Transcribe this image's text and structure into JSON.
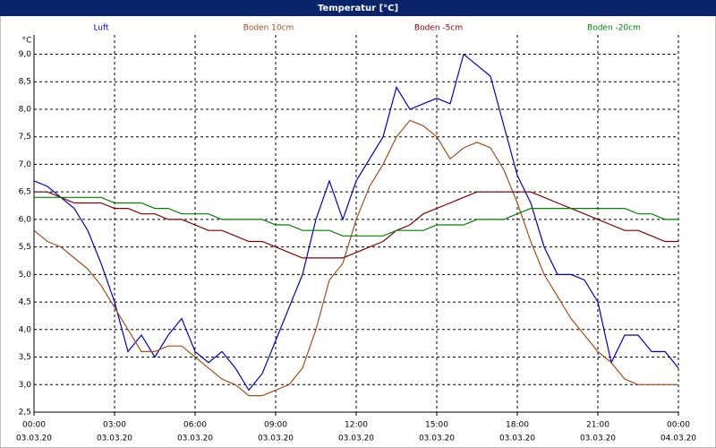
{
  "chart_data": {
    "type": "line",
    "title": "Temperatur [°C]",
    "y_label": "°C",
    "x": [
      0,
      0.5,
      1,
      1.5,
      2,
      2.5,
      3,
      3.5,
      4,
      4.5,
      5,
      5.5,
      6,
      6.5,
      7,
      7.5,
      8,
      8.5,
      9,
      9.5,
      10,
      10.5,
      11,
      11.5,
      12,
      12.5,
      13,
      13.5,
      14,
      14.5,
      15,
      15.5,
      16,
      16.5,
      17,
      17.5,
      18,
      18.5,
      19,
      19.5,
      20,
      20.5,
      21,
      21.5,
      22,
      22.5,
      23,
      23.5,
      24
    ],
    "series": [
      {
        "name": "Luft",
        "color": "#0000c8",
        "values": [
          6.7,
          6.6,
          6.4,
          6.2,
          5.8,
          5.2,
          4.5,
          3.6,
          3.9,
          3.5,
          3.9,
          4.2,
          3.6,
          3.4,
          3.6,
          3.3,
          2.9,
          3.2,
          3.8,
          4.4,
          5.0,
          6.0,
          6.7,
          6.0,
          6.7,
          7.1,
          7.5,
          8.4,
          8.0,
          8.1,
          8.2,
          8.1,
          9.0,
          8.8,
          8.6,
          7.7,
          6.8,
          6.3,
          5.5,
          5.0,
          5.0,
          4.9,
          4.5,
          3.4,
          3.9,
          3.9,
          3.6,
          3.6,
          3.3
        ]
      },
      {
        "name": "Boden 10cm",
        "color": "#a0501e",
        "values": [
          5.8,
          5.6,
          5.5,
          5.3,
          5.1,
          4.8,
          4.4,
          4.0,
          3.6,
          3.6,
          3.7,
          3.7,
          3.5,
          3.3,
          3.1,
          3.0,
          2.8,
          2.8,
          2.9,
          3.0,
          3.3,
          4.0,
          4.9,
          5.2,
          6.0,
          6.6,
          7.0,
          7.5,
          7.8,
          7.7,
          7.5,
          7.1,
          7.3,
          7.4,
          7.3,
          6.9,
          6.3,
          5.6,
          5.0,
          4.6,
          4.2,
          3.9,
          3.6,
          3.4,
          3.1,
          3.0,
          3.0,
          3.0,
          3.0
        ]
      },
      {
        "name": "Boden -5cm",
        "color": "#800000",
        "values": [
          6.5,
          6.5,
          6.4,
          6.3,
          6.3,
          6.3,
          6.2,
          6.2,
          6.1,
          6.1,
          6.0,
          6.0,
          5.9,
          5.8,
          5.8,
          5.7,
          5.6,
          5.6,
          5.5,
          5.4,
          5.3,
          5.3,
          5.3,
          5.3,
          5.4,
          5.5,
          5.6,
          5.8,
          5.9,
          6.1,
          6.2,
          6.3,
          6.4,
          6.5,
          6.5,
          6.5,
          6.5,
          6.5,
          6.4,
          6.3,
          6.2,
          6.1,
          6.0,
          5.9,
          5.8,
          5.8,
          5.7,
          5.6,
          5.6
        ]
      },
      {
        "name": "Boden -20cm",
        "color": "#008000",
        "values": [
          6.4,
          6.4,
          6.4,
          6.4,
          6.4,
          6.4,
          6.3,
          6.3,
          6.3,
          6.2,
          6.2,
          6.1,
          6.1,
          6.1,
          6.0,
          6.0,
          6.0,
          6.0,
          5.9,
          5.9,
          5.8,
          5.8,
          5.8,
          5.7,
          5.7,
          5.7,
          5.7,
          5.8,
          5.8,
          5.8,
          5.9,
          5.9,
          5.9,
          6.0,
          6.0,
          6.0,
          6.1,
          6.2,
          6.2,
          6.2,
          6.2,
          6.2,
          6.2,
          6.2,
          6.2,
          6.1,
          6.1,
          6.0,
          6.0
        ]
      }
    ],
    "xlim": [
      0,
      24
    ],
    "xticks": [
      {
        "value": 0,
        "label": "00:00",
        "date": "03.03.20"
      },
      {
        "value": 3,
        "label": "03:00",
        "date": "03.03.20"
      },
      {
        "value": 6,
        "label": "06:00",
        "date": "03.03.20"
      },
      {
        "value": 9,
        "label": "09:00",
        "date": "03.03.20"
      },
      {
        "value": 12,
        "label": "12:00",
        "date": "03.03.20"
      },
      {
        "value": 15,
        "label": "15:00",
        "date": "03.03.20"
      },
      {
        "value": 18,
        "label": "18:00",
        "date": "03.03.20"
      },
      {
        "value": 21,
        "label": "21:00",
        "date": "03.03.20"
      },
      {
        "value": 24,
        "label": "00:00",
        "date": "04.03.20"
      }
    ],
    "ylim": [
      2.5,
      9.35
    ],
    "yticks": [
      {
        "value": 2.5,
        "label": "2,5"
      },
      {
        "value": 3,
        "label": "3,0"
      },
      {
        "value": 3.5,
        "label": "3,5"
      },
      {
        "value": 4,
        "label": "4,0"
      },
      {
        "value": 4.5,
        "label": "4,5"
      },
      {
        "value": 5,
        "label": "5,0"
      },
      {
        "value": 5.5,
        "label": "5,5"
      },
      {
        "value": 6,
        "label": "6,0"
      },
      {
        "value": 6.5,
        "label": "6,5"
      },
      {
        "value": 7,
        "label": "7,0"
      },
      {
        "value": 7.5,
        "label": "7,5"
      },
      {
        "value": 8,
        "label": "8,0"
      },
      {
        "value": 8.5,
        "label": "8,5"
      },
      {
        "value": 9,
        "label": "9,0"
      }
    ],
    "grid": true
  }
}
